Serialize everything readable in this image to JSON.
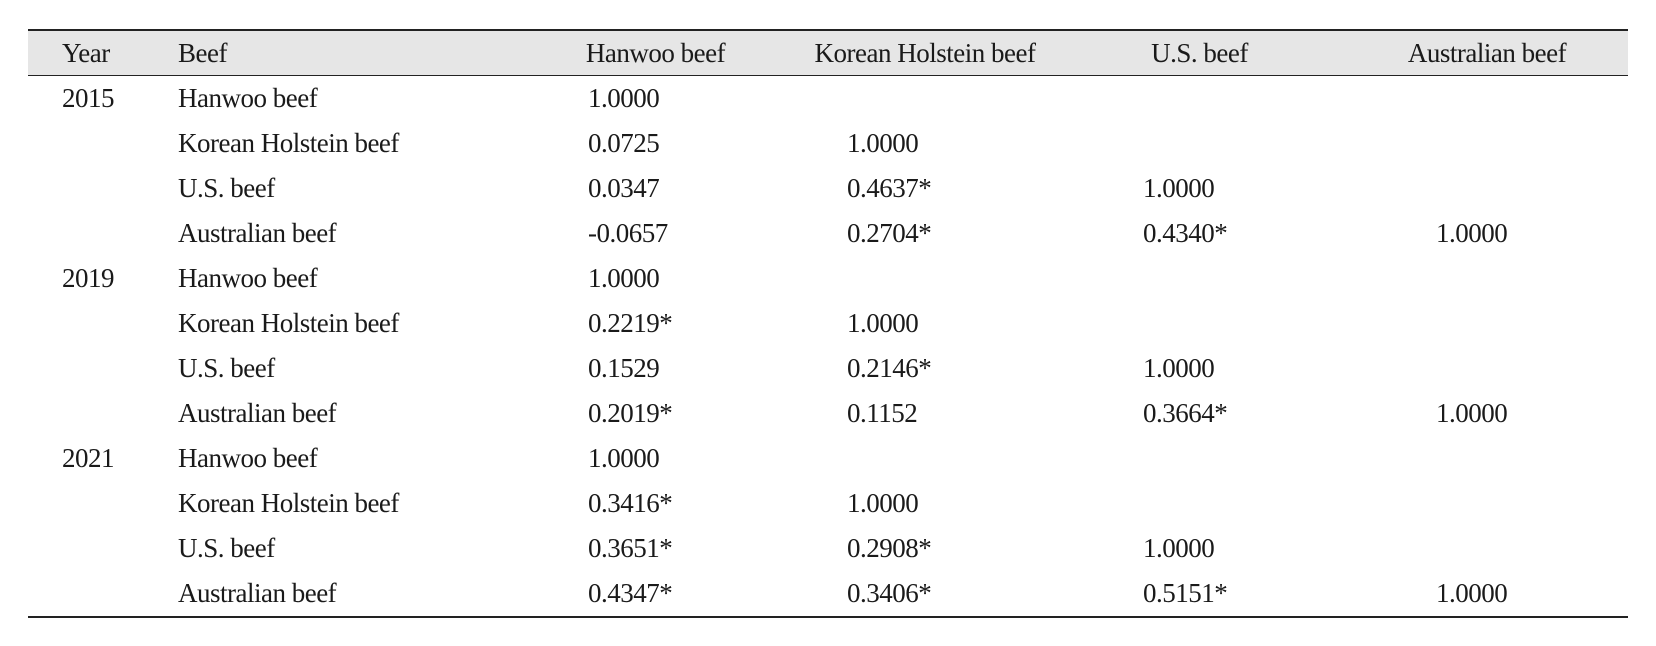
{
  "table": {
    "headers": [
      "Year",
      "Beef",
      "Hanwoo beef",
      "Korean Holstein beef",
      "U.S. beef",
      "Australian beef"
    ],
    "rows": [
      {
        "year": "2015",
        "beef": "Hanwoo beef",
        "hanwoo": "1.0000",
        "holstein": "",
        "us": "",
        "australian": ""
      },
      {
        "year": "",
        "beef": "Korean Holstein beef",
        "hanwoo": "0.0725",
        "holstein": "1.0000",
        "us": "",
        "australian": ""
      },
      {
        "year": "",
        "beef": "U.S. beef",
        "hanwoo": "0.0347",
        "holstein": "0.4637*",
        "us": "1.0000",
        "australian": ""
      },
      {
        "year": "",
        "beef": "Australian beef",
        "hanwoo": "-0.0657",
        "holstein": "0.2704*",
        "us": "0.4340*",
        "australian": "1.0000"
      },
      {
        "year": "2019",
        "beef": "Hanwoo beef",
        "hanwoo": "1.0000",
        "holstein": "",
        "us": "",
        "australian": ""
      },
      {
        "year": "",
        "beef": "Korean Holstein beef",
        "hanwoo": "0.2219*",
        "holstein": "1.0000",
        "us": "",
        "australian": ""
      },
      {
        "year": "",
        "beef": "U.S. beef",
        "hanwoo": "0.1529",
        "holstein": "0.2146*",
        "us": "1.0000",
        "australian": ""
      },
      {
        "year": "",
        "beef": "Australian beef",
        "hanwoo": "0.2019*",
        "holstein": "0.1152",
        "us": "0.3664*",
        "australian": "1.0000"
      },
      {
        "year": "2021",
        "beef": "Hanwoo beef",
        "hanwoo": "1.0000",
        "holstein": "",
        "us": "",
        "australian": ""
      },
      {
        "year": "",
        "beef": "Korean Holstein beef",
        "hanwoo": "0.3416*",
        "holstein": "1.0000",
        "us": "",
        "australian": ""
      },
      {
        "year": "",
        "beef": "U.S. beef",
        "hanwoo": "0.3651*",
        "holstein": "0.2908*",
        "us": "1.0000",
        "australian": ""
      },
      {
        "year": "",
        "beef": "Australian beef",
        "hanwoo": "0.4347*",
        "holstein": "0.3406*",
        "us": "0.5151*",
        "australian": "1.0000"
      }
    ]
  }
}
